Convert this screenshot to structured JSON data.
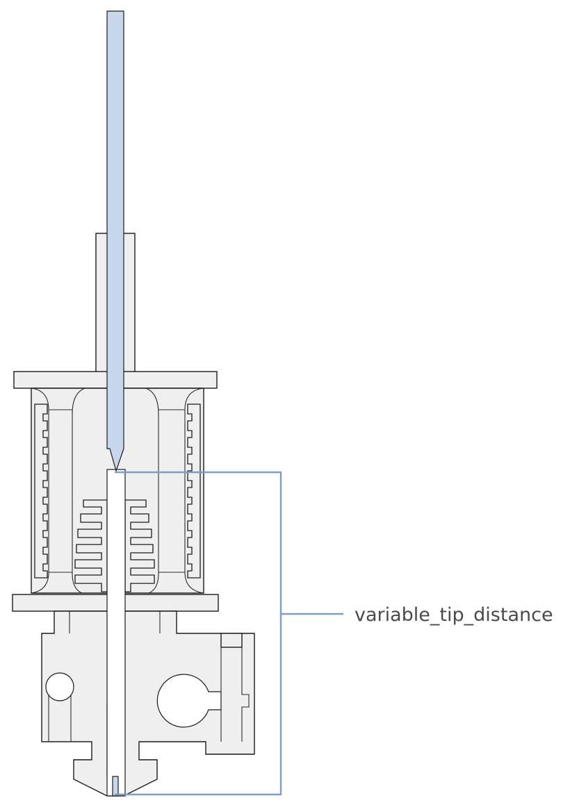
{
  "diagram": {
    "annotation_label": "variable_tip_distance"
  },
  "colors": {
    "filament": "#c9d7ee",
    "bracket": "#7c9ccd",
    "part_fill": "#efefef",
    "outline": "#1a1a1a",
    "label": "#4a4a4a"
  }
}
